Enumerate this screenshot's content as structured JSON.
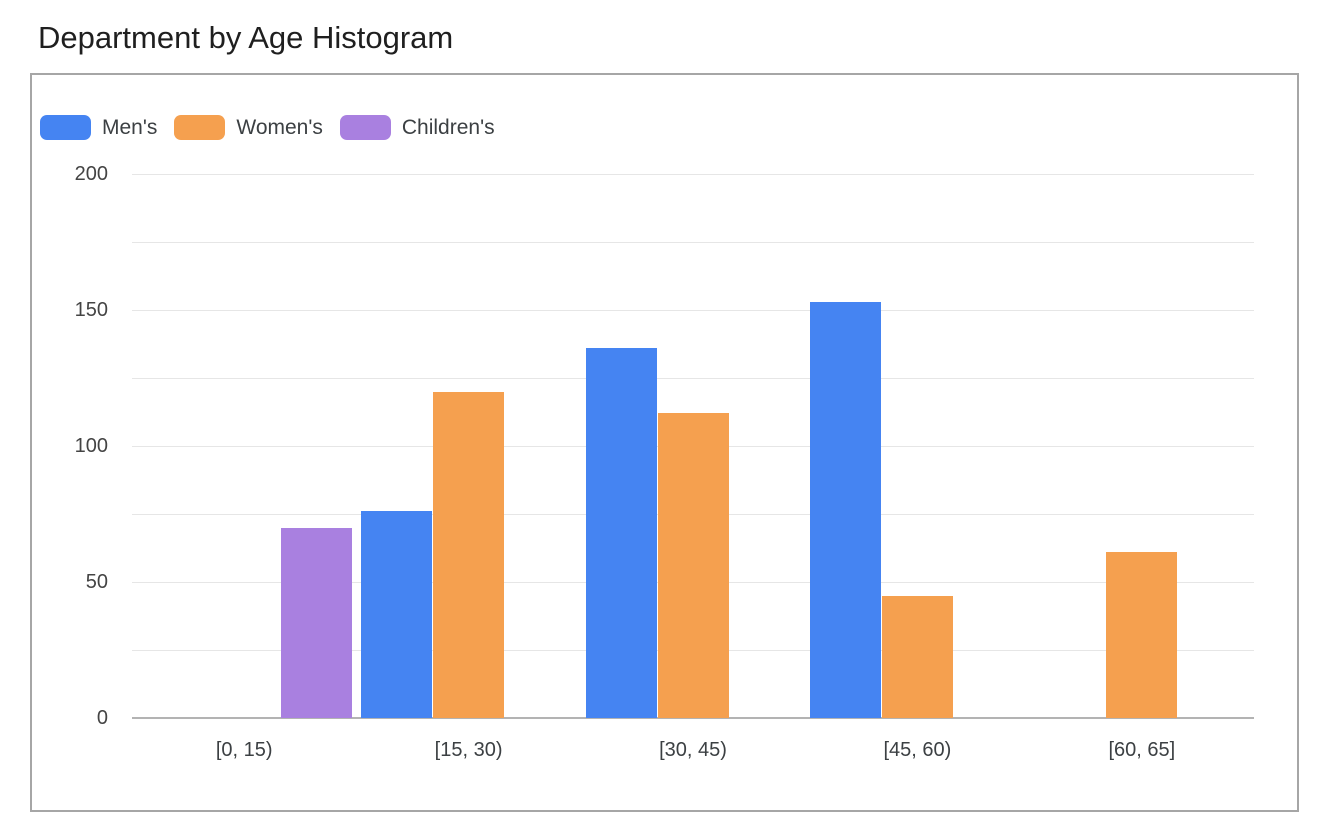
{
  "title": "Department by Age Histogram",
  "chart_data": {
    "type": "bar",
    "title": "Department by Age Histogram",
    "categories": [
      "[0, 15)",
      "[15, 30)",
      "[30, 45)",
      "[45, 60)",
      "[60, 65]"
    ],
    "series": [
      {
        "name": "Men's",
        "color": "#4584f2",
        "values": [
          0,
          76,
          136,
          153,
          0
        ]
      },
      {
        "name": "Women's",
        "color": "#f5a04f",
        "values": [
          0,
          120,
          112,
          45,
          61
        ]
      },
      {
        "name": "Children's",
        "color": "#a980e0",
        "values": [
          70,
          0,
          0,
          0,
          0
        ]
      }
    ],
    "xlabel": "",
    "ylabel": "",
    "ylim": [
      0,
      200
    ],
    "y_tick_labels": [
      0,
      50,
      100,
      150,
      200
    ],
    "grid_step": 25,
    "grid": true,
    "legend_position": "top-left"
  },
  "colors": {
    "grid": "#e6e6e6",
    "axis_baseline": "#b3b3b3",
    "card_border": "#a6a6a6",
    "title_text": "#1f1f1f",
    "tick_text": "#444444",
    "label_text": "#3c4043"
  }
}
